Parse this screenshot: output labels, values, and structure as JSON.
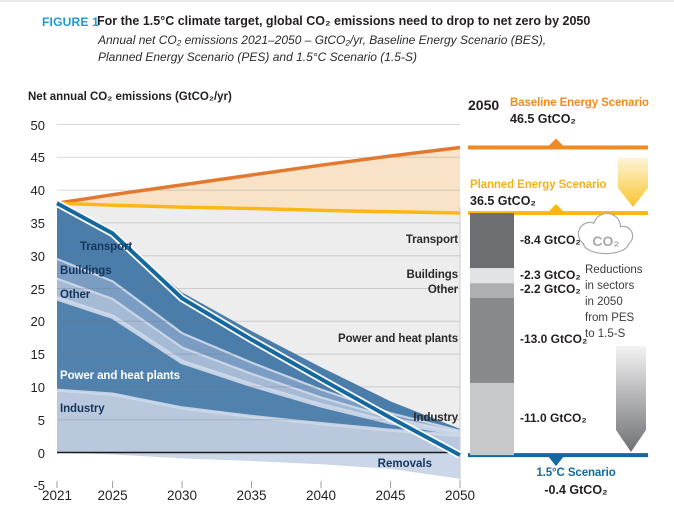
{
  "figure": {
    "label": "FIGURE 1",
    "title": "For the 1.5°C climate target, global CO₂ emissions need to drop to net zero by 2050",
    "subtitle_line1": "Annual net CO₂ emissions 2021–2050 – GtCO₂/yr, Baseline Energy Scenario (BES),",
    "subtitle_line2": "Planned Energy Scenario (PES) and 1.5°C Scenario (1.5-S)"
  },
  "chart_data": {
    "type": "area",
    "title": "Net annual CO₂ emissions, three scenarios, 2021-2050",
    "ylabel": "Net annual CO₂ emissions (GtCO₂/yr)",
    "xlabel": "",
    "ylim": [
      -5,
      50
    ],
    "ytick_step": 5,
    "grid": true,
    "x": [
      2021,
      2025,
      2030,
      2035,
      2040,
      2045,
      2050
    ],
    "x_ticks": [
      2021,
      2025,
      2030,
      2035,
      2040,
      2045,
      2050
    ],
    "lines": [
      {
        "name": "Baseline Energy Scenario",
        "color": "#e2792e",
        "fill_below_to_next": "#f8e3c9",
        "values": [
          38,
          39.3,
          40.8,
          42.3,
          43.8,
          45.2,
          46.5
        ]
      },
      {
        "name": "Planned Energy Scenario",
        "color": "#fdb714",
        "fill_below_to_next": "#ededee",
        "values": [
          38,
          37.7,
          37.4,
          37.2,
          36.9,
          36.7,
          36.5
        ]
      },
      {
        "name": "1.5°C Scenario (net)",
        "color": "#15699e",
        "values": [
          38,
          33.4,
          23.5,
          17.2,
          11.2,
          5.3,
          -0.4
        ]
      }
    ],
    "stacked_sectors": [
      {
        "name": "Industry",
        "color": "#bac8de",
        "values": [
          9.5,
          8.9,
          6.8,
          5.5,
          4.4,
          3.4,
          2.6
        ]
      },
      {
        "name": "Power and heat plants",
        "color": "#5181ad",
        "values": [
          14.0,
          11.8,
          7.0,
          4.8,
          2.8,
          1.2,
          0.3
        ]
      },
      {
        "name": "Other",
        "color": "#a5bad5",
        "values": [
          3.0,
          2.7,
          2.2,
          1.7,
          1.2,
          0.7,
          0.2
        ]
      },
      {
        "name": "Buildings",
        "color": "#7b9dc3",
        "values": [
          3.0,
          2.7,
          2.2,
          1.7,
          1.2,
          0.7,
          0.2
        ]
      },
      {
        "name": "Transport",
        "color": "#4b7dab",
        "values": [
          8.5,
          7.6,
          6.2,
          4.8,
          3.4,
          1.8,
          0.3
        ]
      }
    ],
    "removals": {
      "name": "Removals",
      "color": "#cbd6e8",
      "values": [
        0,
        -0.3,
        -0.9,
        -1.3,
        -1.8,
        -2.5,
        -4.0
      ]
    },
    "reductions_start_value": 36.5,
    "reductions": [
      {
        "sector": "Transport",
        "value": -8.4,
        "label": "-8.4 GtCO₂",
        "color": "#6d6e71"
      },
      {
        "sector": "Buildings",
        "value": -2.3,
        "label": "-2.3 GtCO₂",
        "color": "#e2e3e4"
      },
      {
        "sector": "Other",
        "value": -2.2,
        "label": "-2.2 GtCO₂",
        "color": "#aeafb1"
      },
      {
        "sector": "Power and heat plants",
        "value": -13.0,
        "label": "-13.0 GtCO₂",
        "color": "#88898b"
      },
      {
        "sector": "Industry",
        "value": -11.0,
        "label": "-11.0 GtCO₂",
        "color": "#c7c8ca"
      }
    ]
  },
  "sector_labels": {
    "transport": "Transport",
    "buildings": "Buildings",
    "other": "Other",
    "power": "Power and heat plants",
    "industry": "Industry",
    "removals": "Removals"
  },
  "right_panel": {
    "year_label": "2050",
    "bes": {
      "name": "Baseline Energy Scenario",
      "value": "46.5 GtCO₂",
      "color": "#ef8b22"
    },
    "pes": {
      "name": "Planned Energy Scenario",
      "value": "36.5 GtCO₂",
      "color": "#fdb714"
    },
    "s15": {
      "name": "1.5°C Scenario",
      "value": "-0.4 GtCO₂",
      "color": "#15699e"
    },
    "cloud_icon_text": "CO₂",
    "note_lines": [
      "Reductions",
      "in sectors",
      "in 2050",
      "from PES",
      "to 1.5-S"
    ]
  }
}
